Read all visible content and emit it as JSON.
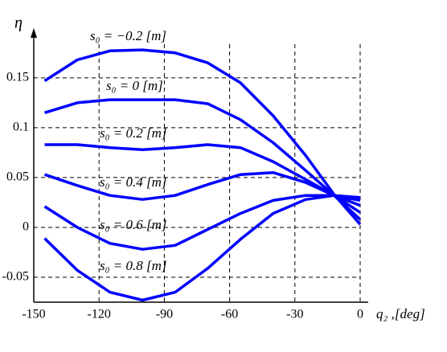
{
  "chart_data": {
    "type": "line",
    "x_label": "q₂ ,[deg]",
    "y_label": "η",
    "x": [
      -145,
      -130,
      -115,
      -100,
      -85,
      -70,
      -55,
      -40,
      -25,
      -12,
      0
    ],
    "series": [
      {
        "name": "s₀ = −0.2 [m]",
        "color": "#0000ff",
        "values": [
          0.147,
          0.168,
          0.177,
          0.178,
          0.175,
          0.165,
          0.145,
          0.112,
          0.072,
          0.033,
          0.003
        ]
      },
      {
        "name": "s₀ = 0 [m]",
        "color": "#0000ff",
        "values": [
          0.115,
          0.125,
          0.128,
          0.128,
          0.128,
          0.124,
          0.108,
          0.085,
          0.057,
          0.032,
          0.008
        ]
      },
      {
        "name": "s₀ = 0.2 [m]",
        "color": "#0000ff",
        "values": [
          0.083,
          0.083,
          0.08,
          0.078,
          0.08,
          0.083,
          0.08,
          0.066,
          0.048,
          0.032,
          0.015
        ]
      },
      {
        "name": "s₀ = 0.4 [m]",
        "color": "#0000ff",
        "values": [
          0.053,
          0.042,
          0.032,
          0.028,
          0.032,
          0.043,
          0.053,
          0.055,
          0.045,
          0.032,
          0.022
        ]
      },
      {
        "name": "s₀ = 0.6 [m]",
        "color": "#0000ff",
        "values": [
          0.021,
          0.0,
          -0.016,
          -0.022,
          -0.018,
          -0.002,
          0.014,
          0.027,
          0.032,
          0.032,
          0.027
        ]
      },
      {
        "name": "s₀ = 0.8 [m]",
        "color": "#0000ff",
        "values": [
          -0.011,
          -0.043,
          -0.065,
          -0.073,
          -0.065,
          -0.041,
          -0.012,
          0.014,
          0.028,
          0.032,
          0.03
        ]
      }
    ],
    "xlim": [
      -150,
      0
    ],
    "xticks": [
      -150,
      -120,
      -90,
      -60,
      -30,
      0
    ],
    "ylim": [
      -0.075,
      0.195
    ],
    "yticks": [
      -0.05,
      0,
      0.05,
      0.1,
      0.15
    ],
    "grid": true
  }
}
